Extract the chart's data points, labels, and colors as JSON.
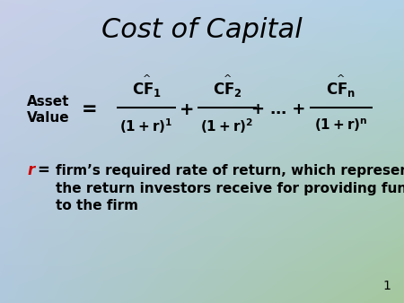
{
  "title": "Cost of Capital",
  "slide_number": "1",
  "r_color": "#cc0000",
  "description_line1": "firm’s required rate of return, which represents",
  "description_line2": "the return investors receive for providing funds",
  "description_line3": "to the firm",
  "bg_tl": [
    200,
    208,
    232
  ],
  "bg_tr": [
    178,
    210,
    230
  ],
  "bg_bl": [
    175,
    200,
    220
  ],
  "bg_br": [
    165,
    200,
    158
  ]
}
